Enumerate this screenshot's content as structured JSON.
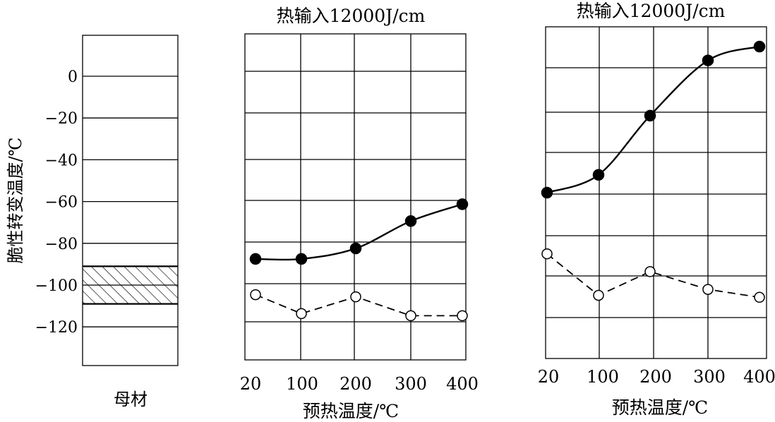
{
  "chart_data": [
    {
      "type": "bar",
      "panel": "base-metal",
      "title": "",
      "category_label": "母材",
      "ylabel": "脆性转变温度/℃",
      "ylim": [
        -137,
        18
      ],
      "yticks": [
        0,
        -20,
        -40,
        -60,
        -80,
        -100,
        -120
      ],
      "ytick_labels": [
        "0",
        "−20",
        "−40",
        "−60",
        "−80",
        "−100",
        "−120"
      ],
      "grid": "horizontal",
      "range": {
        "low": -109,
        "high": -91,
        "fill": "hatched"
      }
    },
    {
      "type": "line",
      "panel": "left",
      "title": "热输入12000J/cm",
      "xlabel": "预热温度/℃",
      "x": [
        "20",
        "100",
        "200",
        "300",
        "400"
      ],
      "ylim": [
        -137,
        18
      ],
      "grid": "both",
      "series": [
        {
          "marker": "filled-circle",
          "line": "solid",
          "values": [
            -89,
            -89,
            -84,
            -71,
            -63
          ]
        },
        {
          "marker": "open-circle",
          "line": "dashed",
          "values": [
            -106,
            -115,
            -107,
            -116,
            -116
          ]
        }
      ]
    },
    {
      "type": "line",
      "panel": "right",
      "title": "热输入12000J/cm",
      "xlabel": "预热温度/℃",
      "x": [
        "20",
        "100",
        "200",
        "300",
        "400"
      ],
      "ylim": [
        -145,
        23
      ],
      "grid": "both",
      "series": [
        {
          "marker": "filled-circle",
          "line": "solid",
          "values": [
            -61,
            -52,
            -22,
            6,
            13
          ]
        },
        {
          "marker": "open-circle",
          "line": "dashed",
          "values": [
            -92,
            -113,
            -101,
            -110,
            -114
          ]
        }
      ]
    }
  ]
}
